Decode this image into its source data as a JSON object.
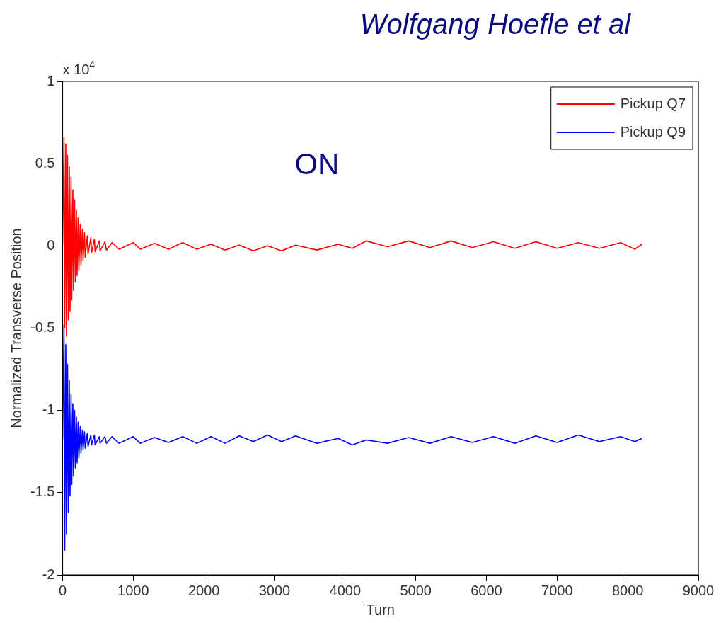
{
  "chart_data": {
    "type": "line",
    "xlabel": "Turn",
    "ylabel": "Normalized Transverse Position",
    "annotations": [
      "Wolfgang Hoefle et al",
      "ON",
      "x 10$^{4}$"
    ],
    "xlim": [
      0,
      9000
    ],
    "xticks": [
      0,
      1000,
      2000,
      3000,
      4000,
      5000,
      6000,
      7000,
      8000,
      9000
    ],
    "ylim": [
      -2,
      1
    ],
    "yticks": [
      -2,
      -1.5,
      -1,
      -0.5,
      0,
      0.5,
      1
    ],
    "grid": false,
    "legend": "top right",
    "marker": "none",
    "line_style": "solid",
    "series": [
      {
        "name": "Pickup Q7",
        "color": "#ff0000",
        "x": [
          0,
          20,
          30,
          45,
          55,
          70,
          80,
          95,
          105,
          120,
          130,
          145,
          155,
          170,
          180,
          195,
          205,
          220,
          230,
          250,
          260,
          280,
          290,
          310,
          320,
          350,
          360,
          400,
          410,
          450,
          460,
          520,
          530,
          600,
          620,
          700,
          800,
          1000,
          1100,
          1300,
          1500,
          1700,
          1900,
          2100,
          2300,
          2500,
          2700,
          2900,
          3100,
          3300,
          3600,
          3900,
          4100,
          4300,
          4600,
          4900,
          5200,
          5500,
          5800,
          6100,
          6400,
          6700,
          7000,
          7300,
          7600,
          7900,
          8100,
          8200
        ],
        "values": [
          0,
          0.66,
          -0.5,
          0.62,
          -0.55,
          0.55,
          -0.45,
          0.48,
          -0.4,
          0.42,
          -0.33,
          0.34,
          -0.27,
          0.28,
          -0.22,
          0.22,
          -0.18,
          0.17,
          -0.15,
          0.13,
          -0.12,
          0.1,
          -0.09,
          0.08,
          -0.07,
          0.06,
          -0.05,
          0.05,
          -0.04,
          0.04,
          -0.035,
          0.03,
          -0.03,
          0.025,
          -0.025,
          0.02,
          -0.02,
          0.02,
          -0.02,
          0.015,
          -0.02,
          0.02,
          -0.02,
          0.01,
          -0.025,
          0.005,
          -0.03,
          0,
          -0.03,
          0.005,
          -0.025,
          0.01,
          -0.015,
          0.03,
          -0.005,
          0.03,
          -0.01,
          0.03,
          -0.01,
          0.025,
          -0.015,
          0.025,
          -0.015,
          0.02,
          -0.015,
          0.02,
          -0.02,
          0.01
        ]
      },
      {
        "name": "Pickup Q9",
        "color": "#0000ff",
        "x": [
          0,
          20,
          30,
          45,
          55,
          70,
          80,
          95,
          105,
          120,
          130,
          145,
          155,
          170,
          180,
          195,
          205,
          220,
          230,
          250,
          260,
          280,
          290,
          310,
          320,
          350,
          360,
          400,
          410,
          450,
          460,
          520,
          530,
          600,
          620,
          700,
          800,
          1000,
          1100,
          1300,
          1500,
          1700,
          1900,
          2100,
          2300,
          2500,
          2700,
          2900,
          3100,
          3300,
          3600,
          3900,
          4100,
          4300,
          4600,
          4900,
          5200,
          5500,
          5800,
          6100,
          6400,
          6700,
          7000,
          7300,
          7600,
          7900,
          8100,
          8200
        ],
        "values": [
          -1.18,
          -0.48,
          -1.85,
          -0.6,
          -1.75,
          -0.72,
          -1.62,
          -0.82,
          -1.52,
          -0.9,
          -1.45,
          -0.96,
          -1.4,
          -1.0,
          -1.35,
          -1.04,
          -1.32,
          -1.07,
          -1.29,
          -1.1,
          -1.26,
          -1.12,
          -1.24,
          -1.13,
          -1.23,
          -1.14,
          -1.22,
          -1.15,
          -1.21,
          -1.15,
          -1.21,
          -1.16,
          -1.2,
          -1.16,
          -1.2,
          -1.16,
          -1.2,
          -1.16,
          -1.2,
          -1.165,
          -1.195,
          -1.16,
          -1.2,
          -1.16,
          -1.2,
          -1.155,
          -1.19,
          -1.15,
          -1.19,
          -1.155,
          -1.2,
          -1.17,
          -1.21,
          -1.18,
          -1.2,
          -1.165,
          -1.2,
          -1.16,
          -1.195,
          -1.16,
          -1.2,
          -1.155,
          -1.195,
          -1.15,
          -1.19,
          -1.16,
          -1.19,
          -1.17
        ]
      }
    ]
  }
}
